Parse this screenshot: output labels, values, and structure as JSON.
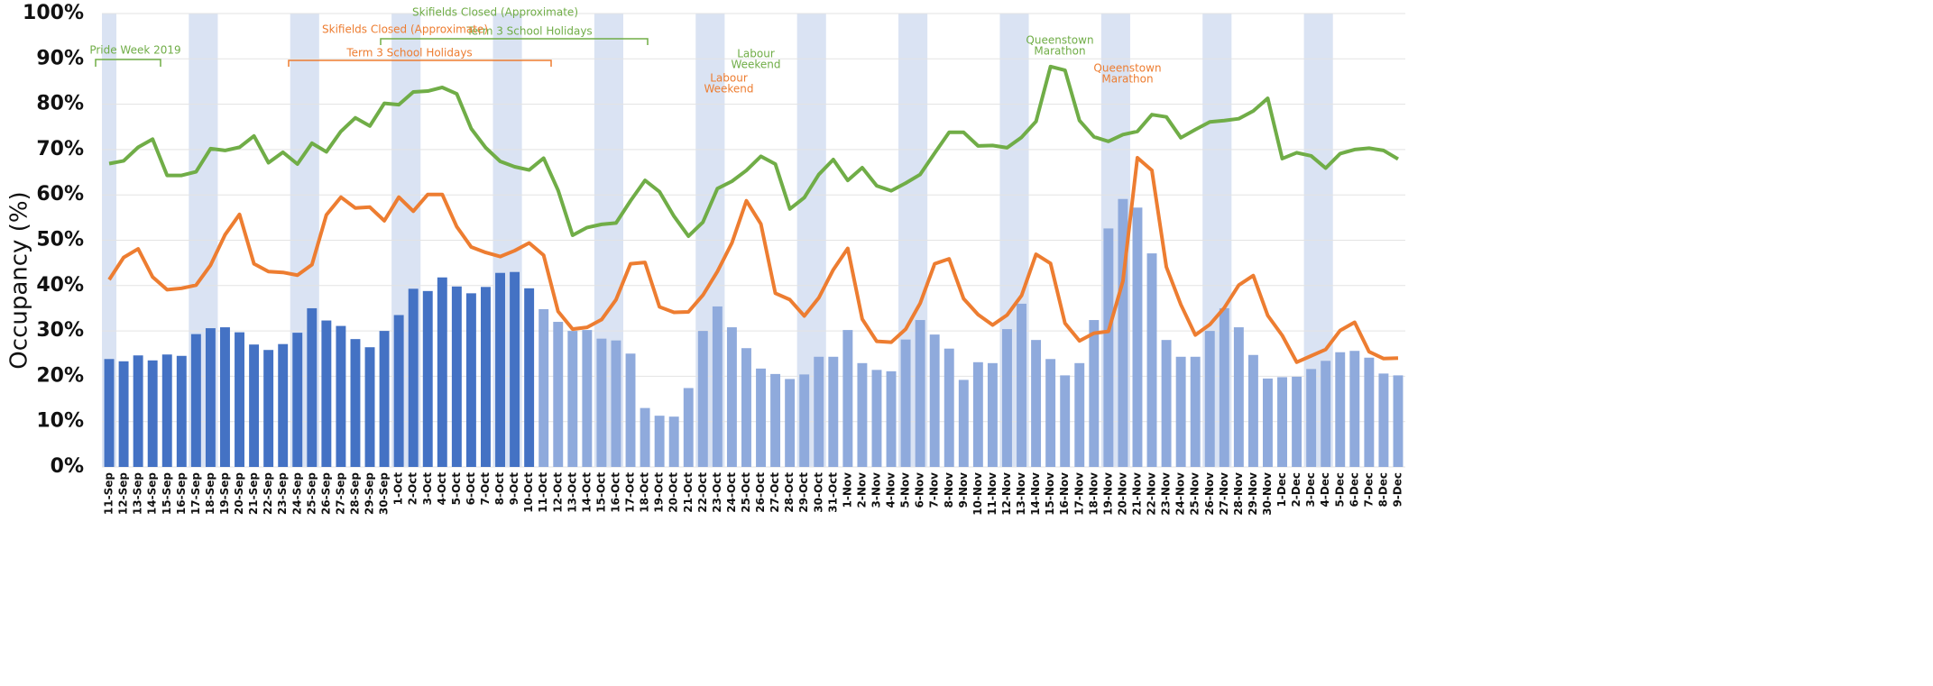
{
  "chart_data": {
    "type": "bar",
    "y_label": "Occupancy (%)",
    "ylim": [
      0,
      100
    ],
    "yticks": [
      {
        "value": 0,
        "label": "0%"
      },
      {
        "value": 10,
        "label": "10%"
      },
      {
        "value": 20,
        "label": "20%"
      },
      {
        "value": 30,
        "label": "30%"
      },
      {
        "value": 40,
        "label": "40%"
      },
      {
        "value": 50,
        "label": "50%"
      },
      {
        "value": 60,
        "label": "60%"
      },
      {
        "value": 70,
        "label": "70%"
      },
      {
        "value": 80,
        "label": "80%"
      },
      {
        "value": 90,
        "label": "90%"
      },
      {
        "value": 100,
        "label": "100%"
      }
    ],
    "grid": true,
    "band_color": "#dae3f3",
    "shaded_bands": [
      {
        "from": "11-Sep",
        "to": "11-Sep"
      },
      {
        "from": "17-Sep",
        "to": "18-Sep"
      },
      {
        "from": "24-Sep",
        "to": "25-Sep"
      },
      {
        "from": "1-Oct",
        "to": "2-Oct"
      },
      {
        "from": "8-Oct",
        "to": "9-Oct"
      },
      {
        "from": "15-Oct",
        "to": "16-Oct"
      },
      {
        "from": "22-Oct",
        "to": "23-Oct"
      },
      {
        "from": "29-Oct",
        "to": "30-Oct"
      },
      {
        "from": "5-Nov",
        "to": "6-Nov"
      },
      {
        "from": "12-Nov",
        "to": "13-Nov"
      },
      {
        "from": "19-Nov",
        "to": "20-Nov"
      },
      {
        "from": "26-Nov",
        "to": "27-Nov"
      },
      {
        "from": "3-Dec",
        "to": "4-Dec"
      }
    ],
    "categories": [
      "11-Sep",
      "12-Sep",
      "13-Sep",
      "14-Sep",
      "15-Sep",
      "16-Sep",
      "17-Sep",
      "18-Sep",
      "19-Sep",
      "20-Sep",
      "21-Sep",
      "22-Sep",
      "23-Sep",
      "24-Sep",
      "25-Sep",
      "26-Sep",
      "27-Sep",
      "28-Sep",
      "29-Sep",
      "30-Sep",
      "1-Oct",
      "2-Oct",
      "3-Oct",
      "4-Oct",
      "5-Oct",
      "6-Oct",
      "7-Oct",
      "8-Oct",
      "9-Oct",
      "10-Oct",
      "11-Oct",
      "12-Oct",
      "13-Oct",
      "14-Oct",
      "15-Oct",
      "16-Oct",
      "17-Oct",
      "18-Oct",
      "19-Oct",
      "20-Oct",
      "21-Oct",
      "22-Oct",
      "23-Oct",
      "24-Oct",
      "25-Oct",
      "26-Oct",
      "27-Oct",
      "28-Oct",
      "29-Oct",
      "30-Oct",
      "31-Oct",
      "1-Nov",
      "2-Nov",
      "3-Nov",
      "4-Nov",
      "5-Nov",
      "6-Nov",
      "7-Nov",
      "8-Nov",
      "9-Nov",
      "10-Nov",
      "11-Nov",
      "12-Nov",
      "13-Nov",
      "14-Nov",
      "15-Nov",
      "16-Nov",
      "17-Nov",
      "18-Nov",
      "19-Nov",
      "20-Nov",
      "21-Nov",
      "22-Nov",
      "23-Nov",
      "24-Nov",
      "25-Nov",
      "26-Nov",
      "27-Nov",
      "28-Nov",
      "29-Nov",
      "30-Nov",
      "1-Dec",
      "2-Dec",
      "3-Dec",
      "4-Dec",
      "5-Dec",
      "6-Dec",
      "7-Dec",
      "8-Dec",
      "9-Dec"
    ],
    "series": [
      {
        "type": "bar",
        "color": "#4472c4",
        "values": [
          23.8,
          23.3,
          24.6,
          23.5,
          24.8,
          24.5,
          29.3,
          30.6,
          30.8,
          29.7,
          27.0,
          25.8,
          27.1,
          29.6,
          35.0,
          32.3,
          31.1,
          28.2,
          26.4,
          30.0,
          33.5,
          39.3,
          38.8,
          41.8,
          39.8,
          38.3,
          39.7,
          42.8,
          43.0,
          39.4,
          null,
          null,
          null,
          null,
          null,
          null,
          null,
          null,
          null,
          null,
          null,
          null,
          null,
          null,
          null,
          null,
          null,
          null,
          null,
          null,
          null,
          null,
          null,
          null,
          null,
          null,
          null,
          null,
          null,
          null,
          null,
          null,
          null,
          null,
          null,
          null,
          null,
          null,
          null,
          null,
          null,
          null,
          null,
          null,
          null,
          null,
          null,
          null,
          null,
          null,
          null,
          null,
          null,
          null,
          null,
          null,
          null,
          null,
          null,
          null
        ]
      },
      {
        "type": "bar",
        "color": "#8faadc",
        "values": [
          null,
          null,
          null,
          null,
          null,
          null,
          null,
          null,
          null,
          null,
          null,
          null,
          null,
          null,
          null,
          null,
          null,
          null,
          null,
          null,
          null,
          null,
          null,
          null,
          null,
          null,
          null,
          null,
          null,
          null,
          34.8,
          32.0,
          30.0,
          30.2,
          28.3,
          27.9,
          25.0,
          13.0,
          11.3,
          11.1,
          17.4,
          30.0,
          35.4,
          30.8,
          26.2,
          21.7,
          20.5,
          19.4,
          20.4,
          24.3,
          24.3,
          30.2,
          22.9,
          21.4,
          21.1,
          28.1,
          32.4,
          29.2,
          26.1,
          19.2,
          23.1,
          22.9,
          30.4,
          36.0,
          28.0,
          23.8,
          20.2,
          22.9,
          32.4,
          52.6,
          59.1,
          57.2,
          47.1,
          28.0,
          24.3,
          24.3,
          30.0,
          35.0,
          30.8,
          24.7,
          19.5,
          19.8,
          19.9,
          21.6,
          23.4,
          25.3,
          25.6,
          24.1,
          20.6,
          20.2
        ]
      },
      {
        "type": "line",
        "color": "#70ad47",
        "values": [
          66.9,
          67.5,
          70.5,
          72.3,
          64.3,
          64.3,
          65.1,
          70.2,
          69.8,
          70.5,
          73.0,
          67.1,
          69.4,
          66.8,
          71.4,
          69.5,
          74.0,
          77.0,
          75.2,
          80.2,
          79.9,
          82.7,
          82.9,
          83.7,
          82.3,
          74.6,
          70.4,
          67.4,
          66.2,
          65.5,
          68.1,
          61.0,
          51.1,
          52.8,
          53.5,
          53.8,
          58.7,
          63.2,
          60.7,
          55.3,
          50.9,
          54.0,
          61.4,
          63.0,
          65.4,
          68.5,
          66.8,
          56.9,
          59.4,
          64.5,
          67.8,
          63.2,
          66.0,
          62.0,
          60.9,
          62.6,
          64.5,
          69.2,
          73.8,
          73.8,
          70.8,
          70.9,
          70.4,
          72.7,
          76.2,
          88.3,
          87.5,
          76.4,
          72.8,
          71.8,
          73.3,
          74.0,
          77.7,
          77.2,
          72.6,
          74.4,
          76.1,
          76.4,
          76.8,
          78.5,
          81.3,
          68.0,
          69.3,
          68.6,
          65.9,
          69.1,
          70.0,
          70.3,
          69.8,
          67.9
        ]
      },
      {
        "type": "line",
        "color": "#ed7d31",
        "values": [
          41.3,
          46.2,
          48.1,
          41.9,
          39.1,
          39.4,
          40.1,
          44.5,
          51.2,
          55.7,
          44.8,
          43.1,
          42.9,
          42.3,
          44.6,
          55.6,
          59.5,
          57.1,
          57.3,
          54.3,
          59.5,
          56.4,
          60.1,
          60.1,
          53.0,
          48.5,
          47.3,
          46.4,
          47.7,
          49.4,
          46.7,
          34.3,
          30.4,
          30.8,
          32.5,
          36.9,
          44.8,
          45.1,
          35.3,
          34.1,
          34.2,
          37.9,
          43.1,
          49.4,
          58.7,
          53.6,
          38.3,
          36.9,
          33.3,
          37.3,
          43.5,
          48.2,
          32.6,
          27.7,
          27.5,
          30.4,
          36.1,
          44.8,
          45.9,
          37.1,
          33.6,
          31.3,
          33.5,
          37.8,
          46.9,
          44.9,
          31.7,
          27.8,
          29.5,
          29.9,
          41.0,
          68.2,
          65.4,
          44.1,
          35.8,
          29.1,
          31.4,
          35.1,
          40.1,
          42.2,
          33.4,
          29.0,
          23.1,
          24.5,
          25.9,
          30.1,
          31.9,
          25.4,
          23.9,
          24.0
        ]
      }
    ],
    "annotations": [
      {
        "lines": [
          "Pride Week 2019"
        ],
        "color": "#70ad47"
      },
      {
        "lines": [
          "Skifields Closed (Approximate)"
        ],
        "color": "#70ad47"
      },
      {
        "lines": [
          "Term 3 School Holidays"
        ],
        "color": "#70ad47"
      },
      {
        "lines": [
          "Skifields Closed (Approximate)"
        ],
        "color": "#ed7d31"
      },
      {
        "lines": [
          "Term 3 School Holidays"
        ],
        "color": "#ed7d31"
      },
      {
        "lines": [
          "Labour",
          "Weekend"
        ],
        "color": "#ed7d31"
      },
      {
        "lines": [
          "Labour",
          "Weekend"
        ],
        "color": "#70ad47"
      },
      {
        "lines": [
          "Queenstown",
          "Marathon"
        ],
        "color": "#70ad47"
      },
      {
        "lines": [
          "Queenstown",
          "Marathon"
        ],
        "color": "#ed7d31"
      }
    ]
  }
}
